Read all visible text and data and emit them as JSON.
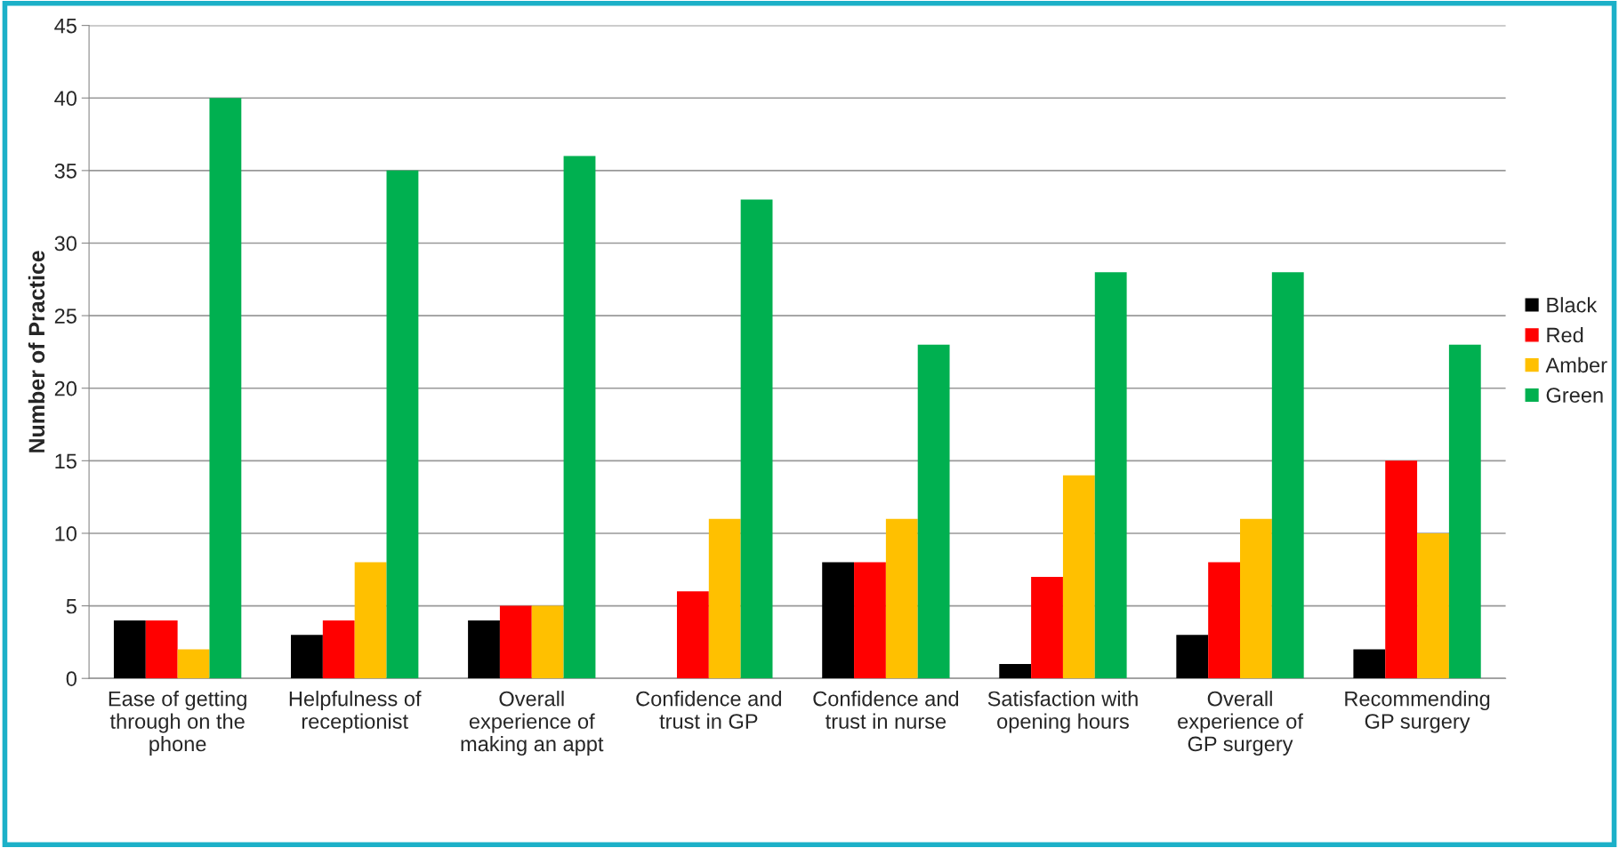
{
  "chart_data": {
    "type": "bar",
    "ylabel": "Number of Practice",
    "categories": [
      "Ease of getting\nthrough on the\nphone",
      "Helpfulness of\nreceptionist",
      "Overall\nexperience of\nmaking an appt",
      "Confidence and\ntrust in GP",
      "Confidence and\ntrust in nurse",
      "Satisfaction with\nopening hours",
      "Overall\nexperience of\nGP surgery",
      "Recommending\nGP surgery"
    ],
    "series": [
      {
        "name": "Black",
        "color": "#000000",
        "values": [
          4,
          3,
          4,
          0,
          8,
          1,
          3,
          2
        ]
      },
      {
        "name": "Red",
        "color": "#ff0000",
        "values": [
          4,
          4,
          5,
          6,
          8,
          7,
          8,
          15
        ]
      },
      {
        "name": "Amber",
        "color": "#ffc000",
        "values": [
          2,
          8,
          5,
          11,
          11,
          14,
          11,
          10
        ]
      },
      {
        "name": "Green",
        "color": "#00b050",
        "values": [
          40,
          35,
          36,
          33,
          23,
          28,
          28,
          23
        ]
      }
    ],
    "ylim": [
      0,
      45
    ],
    "yticks": [
      0,
      5,
      10,
      15,
      20,
      25,
      30,
      35,
      40,
      45
    ],
    "grid": "y",
    "legend": "right"
  }
}
